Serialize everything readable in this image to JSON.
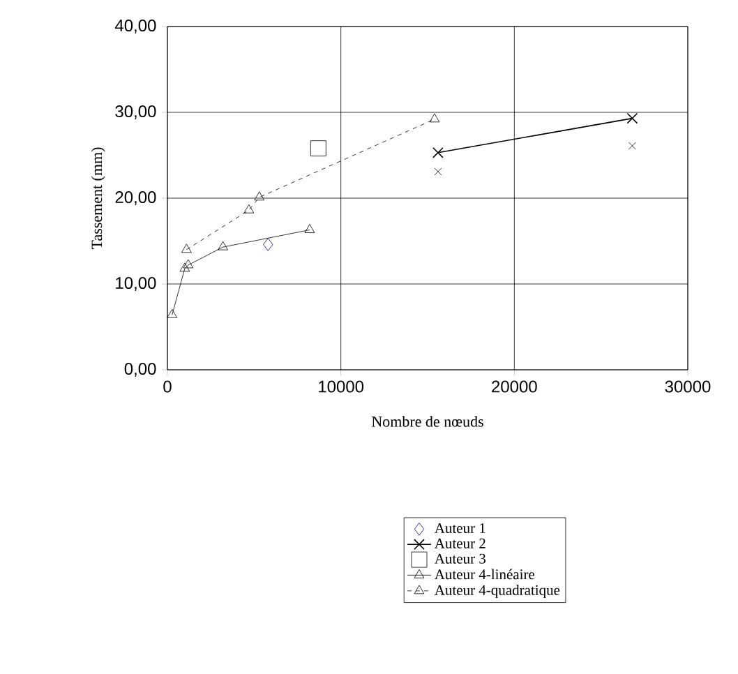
{
  "chart_data": {
    "type": "line",
    "xlabel": "Nombre de nœuds",
    "ylabel": "Tassement (mm)",
    "xlim": [
      0,
      30000
    ],
    "ylim": [
      0,
      40
    ],
    "xticks": [
      0,
      10000,
      20000,
      30000
    ],
    "yticks": [
      {
        "value": 0,
        "label": "0,00"
      },
      {
        "value": 10,
        "label": "10,00"
      },
      {
        "value": 20,
        "label": "20,00"
      },
      {
        "value": 30,
        "label": "30,00"
      },
      {
        "value": 40,
        "label": "40,00"
      }
    ],
    "grid": true,
    "legend": "bottom",
    "series": [
      {
        "name": "Auteur 1",
        "type": "scatter",
        "marker": "diamond",
        "color": "#000080",
        "x": [
          5800
        ],
        "values": [
          14.6
        ]
      },
      {
        "name": "Auteur 2",
        "marker": "cross",
        "line_style": "solid",
        "color": "#000000",
        "x": [
          15600,
          26800
        ],
        "values": [
          25.3,
          29.3
        ]
      },
      {
        "name": "Auteur 3",
        "type": "scatter",
        "marker": "square",
        "color": "#000000",
        "x": [
          8700
        ],
        "values": [
          25.8
        ]
      },
      {
        "name": "Auteur 4-linéaire",
        "marker": "triangle",
        "line_style": "solid",
        "color": "#000000",
        "x": [
          270,
          1000,
          1200,
          3200,
          8200
        ],
        "values": [
          6.4,
          11.8,
          12.2,
          14.3,
          16.3
        ]
      },
      {
        "name": "Auteur 4-quadratique",
        "marker": "triangle",
        "line_style": "dashed",
        "color": "#000000",
        "x": [
          1100,
          4700,
          5300,
          15400
        ],
        "values": [
          14.0,
          18.6,
          20.1,
          29.2
        ]
      },
      {
        "type": "scatter",
        "marker": "cross",
        "color": "#000000",
        "x": [
          15600,
          26800
        ],
        "values": [
          23.1,
          26.1
        ]
      }
    ]
  }
}
